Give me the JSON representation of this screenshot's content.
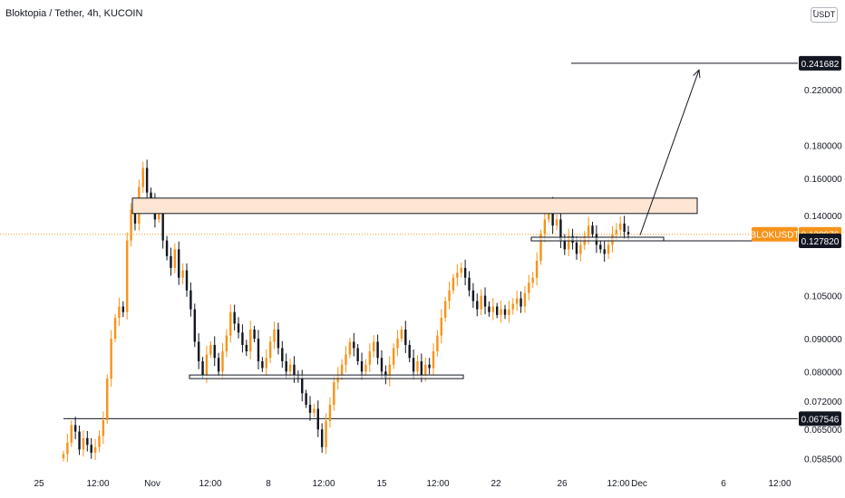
{
  "title": "Bloktopia / Tether, 4h, KUCOIN",
  "currency_button": "USDT",
  "colors": {
    "up": "#f7931a",
    "down": "#131722",
    "zone_fill": "#fde6d3",
    "last_price_bg": "#f7931a",
    "axis_text": "#131722"
  },
  "chart_data": {
    "type": "candlestick",
    "title": "Bloktopia / Tether, 4h, KUCOIN",
    "scale": "log",
    "ylim": [
      0.0575,
      0.262
    ],
    "y_ticks": [
      "0.220000",
      "0.180000",
      "0.160000",
      "0.140000",
      "0.105000",
      "0.090000",
      "0.080000",
      "0.072000",
      "0.065000",
      "0.058500"
    ],
    "x_ticks": [
      "25",
      "12:00",
      "Nov",
      "12:00",
      "8",
      "12:00",
      "15",
      "12:00",
      "22",
      "26",
      "12:00",
      "Dec",
      "6",
      "12:00"
    ],
    "price_labels": [
      {
        "text": "0.241682",
        "value": 0.241682,
        "style": "dark"
      },
      {
        "text": "0.130876",
        "value": 0.130876,
        "style": "last",
        "symbol": "BLOKUSDT"
      },
      {
        "text": "0.127820",
        "value": 0.12782,
        "style": "dark"
      },
      {
        "text": "0.067546",
        "value": 0.067546,
        "style": "dark"
      }
    ],
    "last_price": 0.130876,
    "symbol": "BLOKUSDT",
    "close_series": [
      0.0595,
      0.062,
      0.066,
      0.0645,
      0.0605,
      0.063,
      0.0615,
      0.0598,
      0.061,
      0.0635,
      0.0672,
      0.078,
      0.09,
      0.097,
      0.101,
      0.099,
      0.128,
      0.143,
      0.136,
      0.155,
      0.166,
      0.152,
      0.147,
      0.138,
      0.144,
      0.128,
      0.121,
      0.116,
      0.124,
      0.112,
      0.115,
      0.107,
      0.1,
      0.089,
      0.083,
      0.079,
      0.085,
      0.088,
      0.084,
      0.08,
      0.086,
      0.091,
      0.099,
      0.095,
      0.092,
      0.088,
      0.086,
      0.093,
      0.09,
      0.083,
      0.081,
      0.084,
      0.089,
      0.093,
      0.087,
      0.083,
      0.08,
      0.082,
      0.079,
      0.078,
      0.074,
      0.071,
      0.069,
      0.07,
      0.065,
      0.061,
      0.067,
      0.071,
      0.077,
      0.079,
      0.082,
      0.085,
      0.089,
      0.087,
      0.083,
      0.08,
      0.082,
      0.086,
      0.089,
      0.084,
      0.08,
      0.078,
      0.082,
      0.087,
      0.09,
      0.093,
      0.088,
      0.084,
      0.08,
      0.083,
      0.079,
      0.082,
      0.081,
      0.086,
      0.091,
      0.097,
      0.103,
      0.107,
      0.112,
      0.114,
      0.116,
      0.112,
      0.107,
      0.103,
      0.1,
      0.105,
      0.101,
      0.099,
      0.101,
      0.098,
      0.1,
      0.098,
      0.1,
      0.102,
      0.104,
      0.101,
      0.106,
      0.11,
      0.112,
      0.119,
      0.131,
      0.138,
      0.145,
      0.135,
      0.138,
      0.128,
      0.124,
      0.13,
      0.127,
      0.122,
      0.126,
      0.13,
      0.135,
      0.131,
      0.126,
      0.124,
      0.122,
      0.126,
      0.131,
      0.133,
      0.136,
      0.132,
      0.130876
    ],
    "levels": [
      {
        "name": "target",
        "value": 0.241682
      },
      {
        "name": "support-low",
        "value": 0.067546
      },
      {
        "name": "support-mid",
        "value": 0.0785
      },
      {
        "name": "support-high",
        "value": 0.12782
      }
    ],
    "resistance_zone": [
      0.141,
      0.149
    ],
    "projection_arrow": {
      "from_value": 0.1305,
      "to_value": 0.236
    },
    "grid": false,
    "legend": "none"
  }
}
